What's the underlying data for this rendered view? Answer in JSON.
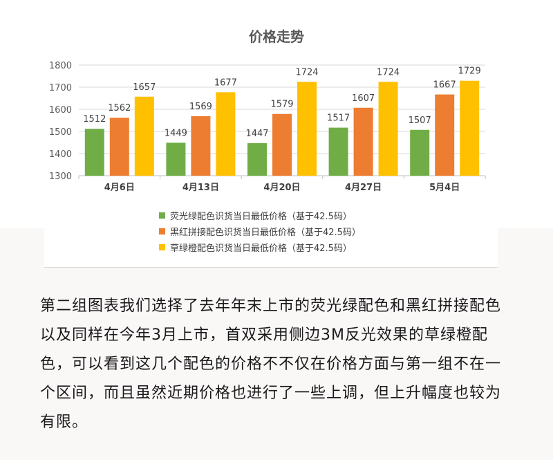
{
  "chart_data": {
    "type": "bar",
    "title": "价格走势",
    "categories": [
      "4月6日",
      "4月13日",
      "4月20日",
      "4月27日",
      "5月4日"
    ],
    "series": [
      {
        "name": "荧光绿配色识货当日最低价格（基于42.5码）",
        "color": "#70ad47",
        "values": [
          1512,
          1449,
          1447,
          1517,
          1507
        ]
      },
      {
        "name": "黑红拼接配色识货当日最低价格（基于42.5码）",
        "color": "#ed7d31",
        "values": [
          1562,
          1569,
          1579,
          1607,
          1667
        ]
      },
      {
        "name": "草绿橙配色识货当日最低价格（基于42.5码）",
        "color": "#ffc000",
        "values": [
          1657,
          1677,
          1724,
          1724,
          1729
        ]
      }
    ],
    "ylim": [
      1300,
      1800
    ],
    "yticks": [
      1300,
      1400,
      1500,
      1600,
      1700,
      1800
    ],
    "grid": true,
    "legend_position": "bottom",
    "xlabel": "",
    "ylabel": ""
  },
  "paragraph": "第二组图表我们选择了去年年末上市的荧光绿配色和黑红拼接配色以及同样在今年3月上市，首双采用侧边3M反光效果的草绿橙配色，可以看到这几个配色的价格不不仅在价格方面与第一组不在一个区间，而且虽然近期价格也进行了一些上调，但上升幅度也较为有限。"
}
